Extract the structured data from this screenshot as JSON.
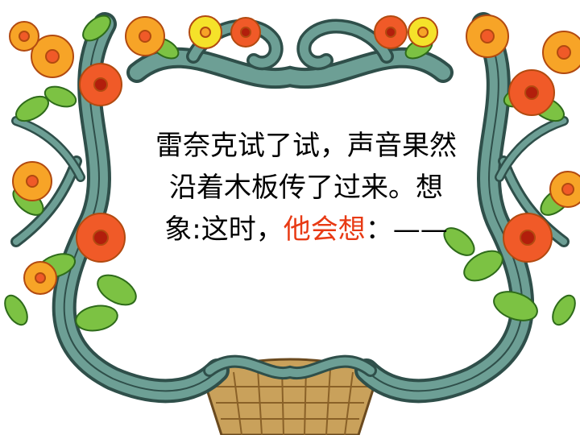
{
  "text": {
    "line1": "雷奈克试了试，声音果然",
    "line2": "沿着木板传了过来。想",
    "line3_prefix": "象:这时，",
    "line3_highlight": "他会想",
    "line3_suffix": "：——"
  },
  "colors": {
    "text": "#000000",
    "highlight": "#e83a14",
    "vine": "#5d8f86",
    "vine_dark": "#2f4f4a",
    "leaf": "#7cc243",
    "flower_orange": "#f7a427",
    "flower_red": "#f05a28",
    "flower_yellow": "#f5e22a",
    "basket": "#c9a15b"
  },
  "decor": {
    "frame": "floral-vine-frame"
  }
}
